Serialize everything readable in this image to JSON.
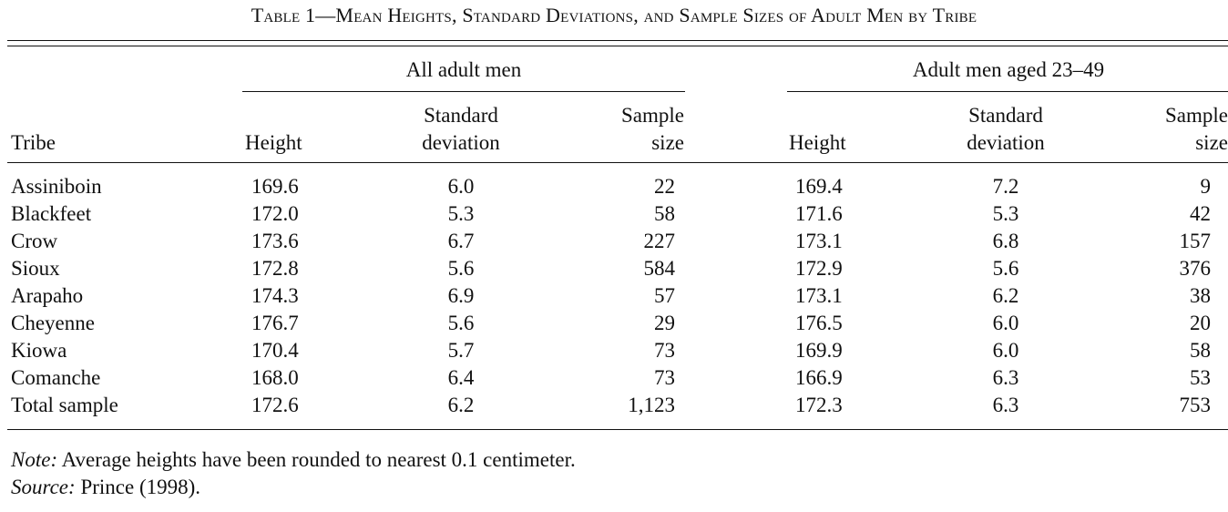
{
  "caption": "Table 1—Mean Heights, Standard Deviations, and Sample Sizes of Adult Men by Tribe",
  "groups": {
    "all": "All adult men",
    "aged": "Adult men aged 23–49"
  },
  "headers": {
    "tribe": "Tribe",
    "height": "Height",
    "sd_line1": "Standard",
    "sd_line2": "deviation",
    "n_line1": "Sample",
    "n_line2": "size"
  },
  "rows": [
    {
      "tribe": "Assiniboin",
      "h1": "169.6",
      "sd1": "6.0",
      "n1": "22",
      "h2": "169.4",
      "sd2": "7.2",
      "n2": "9"
    },
    {
      "tribe": "Blackfeet",
      "h1": "172.0",
      "sd1": "5.3",
      "n1": "58",
      "h2": "171.6",
      "sd2": "5.3",
      "n2": "42"
    },
    {
      "tribe": "Crow",
      "h1": "173.6",
      "sd1": "6.7",
      "n1": "227",
      "h2": "173.1",
      "sd2": "6.8",
      "n2": "157"
    },
    {
      "tribe": "Sioux",
      "h1": "172.8",
      "sd1": "5.6",
      "n1": "584",
      "h2": "172.9",
      "sd2": "5.6",
      "n2": "376"
    },
    {
      "tribe": "Arapaho",
      "h1": "174.3",
      "sd1": "6.9",
      "n1": "57",
      "h2": "173.1",
      "sd2": "6.2",
      "n2": "38"
    },
    {
      "tribe": "Cheyenne",
      "h1": "176.7",
      "sd1": "5.6",
      "n1": "29",
      "h2": "176.5",
      "sd2": "6.0",
      "n2": "20"
    },
    {
      "tribe": "Kiowa",
      "h1": "170.4",
      "sd1": "5.7",
      "n1": "73",
      "h2": "169.9",
      "sd2": "6.0",
      "n2": "58"
    },
    {
      "tribe": "Comanche",
      "h1": "168.0",
      "sd1": "6.4",
      "n1": "73",
      "h2": "166.9",
      "sd2": "6.3",
      "n2": "53"
    },
    {
      "tribe": "Total sample",
      "h1": "172.6",
      "sd1": "6.2",
      "n1": "1,123",
      "h2": "172.3",
      "sd2": "6.3",
      "n2": "753"
    }
  ],
  "notes": {
    "note_label": "Note:",
    "note_text": " Average heights have been rounded to nearest 0.1 centimeter.",
    "source_label": "Source:",
    "source_text": " Prince (1998)."
  }
}
